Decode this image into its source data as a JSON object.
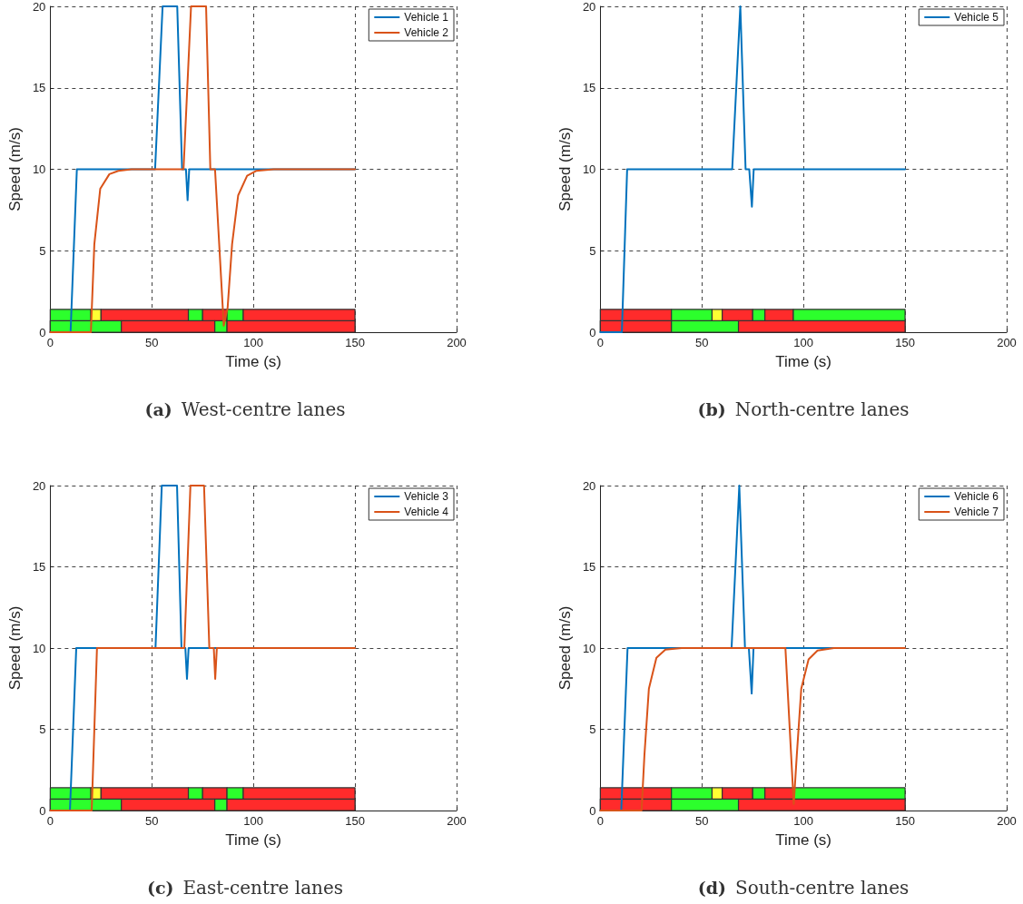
{
  "chart_data": [
    {
      "type": "line",
      "title": "(a) West-centre lanes",
      "xlabel": "Time (s)",
      "ylabel": "Speed (m/s)",
      "xlim": [
        0,
        200
      ],
      "xticks": [
        0,
        50,
        100,
        150,
        200
      ],
      "ylim": [
        0,
        20
      ],
      "yticks": [
        0,
        5,
        10,
        15,
        20
      ],
      "grid": true,
      "legend": "top right",
      "marker": "none",
      "series": [
        {
          "type": "area",
          "color": "#2cff2c",
          "x": [
            0,
            20
          ],
          "values": [
            1.4,
            1.4
          ]
        },
        {
          "type": "area",
          "color": "#ffff33",
          "x": [
            20,
            25
          ],
          "values": [
            1.4,
            1.4
          ]
        },
        {
          "type": "area",
          "color": "#ff2b2b",
          "x": [
            25,
            68
          ],
          "values": [
            1.4,
            1.4
          ]
        },
        {
          "type": "area",
          "color": "#2cff2c",
          "x": [
            68,
            75
          ],
          "values": [
            1.4,
            1.4
          ]
        },
        {
          "type": "area",
          "color": "#ff2b2b",
          "x": [
            75,
            87
          ],
          "values": [
            1.4,
            1.4
          ]
        },
        {
          "type": "area",
          "color": "#2cff2c",
          "x": [
            87,
            95
          ],
          "values": [
            1.4,
            1.4
          ]
        },
        {
          "type": "area",
          "color": "#ff2b2b",
          "x": [
            95,
            150
          ],
          "values": [
            1.4,
            1.4
          ]
        },
        {
          "type": "area",
          "color": "#2cff2c",
          "x": [
            0,
            35
          ],
          "values": [
            0.7,
            0.7
          ]
        },
        {
          "type": "area",
          "color": "#ff2b2b",
          "x": [
            35,
            81
          ],
          "values": [
            0.7,
            0.7
          ]
        },
        {
          "type": "area",
          "color": "#2cff2c",
          "x": [
            81,
            87
          ],
          "values": [
            0.7,
            0.7
          ]
        },
        {
          "type": "area",
          "color": "#ff2b2b",
          "x": [
            87,
            150
          ],
          "values": [
            0.7,
            0.7
          ]
        },
        {
          "name": "Vehicle 1",
          "color": "#0072bd",
          "x": [
            0,
            10,
            13.1,
            51.6,
            55.3,
            62.5,
            64.9,
            66.8,
            67.6,
            68.4,
            150
          ],
          "values": [
            0,
            0,
            10,
            10,
            20,
            20,
            10,
            10,
            8.1,
            10,
            10
          ]
        },
        {
          "name": "Vehicle 2",
          "color": "#d95319",
          "x": [
            0,
            20,
            21.7,
            24.6,
            29.1,
            33.5,
            40,
            65.6,
            69.3,
            76.7,
            78.8,
            81.1,
            85.4,
            87.3,
            89.5,
            92.5,
            96.9,
            101.3,
            110,
            150
          ],
          "values": [
            0,
            0,
            5.4,
            8.8,
            9.7,
            9.9,
            10,
            10,
            20,
            20,
            10,
            10,
            0.4,
            1.5,
            5.4,
            8.4,
            9.6,
            9.9,
            10,
            10
          ]
        }
      ]
    },
    {
      "type": "line",
      "title": "(b) North-centre lanes",
      "xlabel": "Time (s)",
      "ylabel": "Speed (m/s)",
      "xlim": [
        0,
        200
      ],
      "xticks": [
        0,
        50,
        100,
        150,
        200
      ],
      "ylim": [
        0,
        20
      ],
      "yticks": [
        0,
        5,
        10,
        15,
        20
      ],
      "grid": true,
      "legend": "top right",
      "marker": "none",
      "series": [
        {
          "type": "area",
          "color": "#ff2b2b",
          "x": [
            0,
            35
          ],
          "values": [
            0.7,
            0.7
          ]
        },
        {
          "type": "area",
          "color": "#2cff2c",
          "x": [
            35,
            68
          ],
          "values": [
            0.7,
            0.7
          ]
        },
        {
          "type": "area",
          "color": "#ff2b2b",
          "x": [
            68,
            150
          ],
          "values": [
            0.7,
            0.7
          ]
        },
        {
          "type": "area",
          "color": "#ff2b2b",
          "x": [
            0,
            35
          ],
          "values": [
            1.4,
            1.4
          ]
        },
        {
          "type": "area",
          "color": "#2cff2c",
          "x": [
            35,
            55
          ],
          "values": [
            1.4,
            1.4
          ]
        },
        {
          "type": "area",
          "color": "#ffff33",
          "x": [
            55,
            60
          ],
          "values": [
            1.4,
            1.4
          ]
        },
        {
          "type": "area",
          "color": "#ff2b2b",
          "x": [
            60,
            75
          ],
          "values": [
            1.4,
            1.4
          ]
        },
        {
          "type": "area",
          "color": "#2cff2c",
          "x": [
            75,
            81
          ],
          "values": [
            1.4,
            1.4
          ]
        },
        {
          "type": "area",
          "color": "#ff2b2b",
          "x": [
            81,
            95
          ],
          "values": [
            1.4,
            1.4
          ]
        },
        {
          "type": "area",
          "color": "#2cff2c",
          "x": [
            95,
            150
          ],
          "values": [
            1.4,
            1.4
          ]
        },
        {
          "name": "Vehicle 5",
          "color": "#0072bd",
          "x": [
            0,
            10.6,
            13.2,
            64.9,
            68.9,
            71.5,
            73.3,
            74.6,
            75.5,
            150
          ],
          "values": [
            0,
            0,
            10,
            10,
            20,
            10,
            10,
            7.7,
            10,
            10
          ]
        }
      ]
    },
    {
      "type": "line",
      "title": "(c) East-centre lanes",
      "xlabel": "Time (s)",
      "ylabel": "Speed (m/s)",
      "xlim": [
        0,
        200
      ],
      "xticks": [
        0,
        50,
        100,
        150,
        200
      ],
      "ylim": [
        0,
        20
      ],
      "yticks": [
        0,
        5,
        10,
        15,
        20
      ],
      "grid": true,
      "legend": "top right",
      "marker": "none",
      "series": [
        {
          "type": "area",
          "color": "#2cff2c",
          "x": [
            0,
            20
          ],
          "values": [
            1.4,
            1.4
          ]
        },
        {
          "type": "area",
          "color": "#ffff33",
          "x": [
            20,
            25
          ],
          "values": [
            1.4,
            1.4
          ]
        },
        {
          "type": "area",
          "color": "#ff2b2b",
          "x": [
            25,
            68
          ],
          "values": [
            1.4,
            1.4
          ]
        },
        {
          "type": "area",
          "color": "#2cff2c",
          "x": [
            68,
            75
          ],
          "values": [
            1.4,
            1.4
          ]
        },
        {
          "type": "area",
          "color": "#ff2b2b",
          "x": [
            75,
            87
          ],
          "values": [
            1.4,
            1.4
          ]
        },
        {
          "type": "area",
          "color": "#2cff2c",
          "x": [
            87,
            95
          ],
          "values": [
            1.4,
            1.4
          ]
        },
        {
          "type": "area",
          "color": "#ff2b2b",
          "x": [
            95,
            150
          ],
          "values": [
            1.4,
            1.4
          ]
        },
        {
          "type": "area",
          "color": "#2cff2c",
          "x": [
            0,
            35
          ],
          "values": [
            0.7,
            0.7
          ]
        },
        {
          "type": "area",
          "color": "#ff2b2b",
          "x": [
            35,
            81
          ],
          "values": [
            0.7,
            0.7
          ]
        },
        {
          "type": "area",
          "color": "#2cff2c",
          "x": [
            81,
            87
          ],
          "values": [
            0.7,
            0.7
          ]
        },
        {
          "type": "area",
          "color": "#ff2b2b",
          "x": [
            87,
            150
          ],
          "values": [
            0.7,
            0.7
          ]
        },
        {
          "name": "Vehicle 3",
          "color": "#0072bd",
          "x": [
            0,
            9.7,
            12.8,
            51.8,
            54.9,
            62.4,
            64.6,
            66.5,
            67.3,
            68.1,
            150
          ],
          "values": [
            0,
            0,
            10,
            10,
            20,
            20,
            10,
            10,
            8.1,
            10,
            10
          ]
        },
        {
          "name": "Vehicle 4",
          "color": "#d95319",
          "x": [
            0,
            20.4,
            23,
            66,
            69,
            75.7,
            78.3,
            80.5,
            81.2,
            82,
            150
          ],
          "values": [
            0,
            0,
            10,
            10,
            20,
            20,
            10,
            10,
            8.1,
            10,
            10
          ]
        }
      ]
    },
    {
      "type": "line",
      "title": "(d) South-centre lanes",
      "xlabel": "Time (s)",
      "ylabel": "Speed (m/s)",
      "xlim": [
        0,
        200
      ],
      "xticks": [
        0,
        50,
        100,
        150,
        200
      ],
      "ylim": [
        0,
        20
      ],
      "yticks": [
        0,
        5,
        10,
        15,
        20
      ],
      "grid": true,
      "legend": "top right",
      "marker": "none",
      "series": [
        {
          "type": "area",
          "color": "#ff2b2b",
          "x": [
            0,
            35
          ],
          "values": [
            0.7,
            0.7
          ]
        },
        {
          "type": "area",
          "color": "#2cff2c",
          "x": [
            35,
            68
          ],
          "values": [
            0.7,
            0.7
          ]
        },
        {
          "type": "area",
          "color": "#ff2b2b",
          "x": [
            68,
            150
          ],
          "values": [
            0.7,
            0.7
          ]
        },
        {
          "type": "area",
          "color": "#ff2b2b",
          "x": [
            0,
            35
          ],
          "values": [
            1.4,
            1.4
          ]
        },
        {
          "type": "area",
          "color": "#2cff2c",
          "x": [
            35,
            55
          ],
          "values": [
            1.4,
            1.4
          ]
        },
        {
          "type": "area",
          "color": "#ffff33",
          "x": [
            55,
            60
          ],
          "values": [
            1.4,
            1.4
          ]
        },
        {
          "type": "area",
          "color": "#ff2b2b",
          "x": [
            60,
            75
          ],
          "values": [
            1.4,
            1.4
          ]
        },
        {
          "type": "area",
          "color": "#2cff2c",
          "x": [
            75,
            81
          ],
          "values": [
            1.4,
            1.4
          ]
        },
        {
          "type": "area",
          "color": "#ff2b2b",
          "x": [
            81,
            95
          ],
          "values": [
            1.4,
            1.4
          ]
        },
        {
          "type": "area",
          "color": "#2cff2c",
          "x": [
            95,
            150
          ],
          "values": [
            1.4,
            1.4
          ]
        },
        {
          "name": "Vehicle 6",
          "color": "#0072bd",
          "x": [
            0,
            10.3,
            13.4,
            64.6,
            68.4,
            71.2,
            73.1,
            74.5,
            75.4,
            150
          ],
          "values": [
            0,
            0,
            10,
            10,
            20,
            10,
            10,
            7.2,
            10,
            10
          ]
        },
        {
          "name": "Vehicle 7",
          "color": "#d95319",
          "x": [
            0,
            20.3,
            21.7,
            23.9,
            27.6,
            32,
            40,
            91.1,
            95.2,
            96.7,
            98.9,
            102.5,
            106.9,
            115,
            150
          ],
          "values": [
            0,
            0,
            3.4,
            7.5,
            9.4,
            9.9,
            10,
            10,
            0.4,
            3.4,
            7.5,
            9.3,
            9.85,
            10,
            10
          ]
        }
      ]
    }
  ]
}
